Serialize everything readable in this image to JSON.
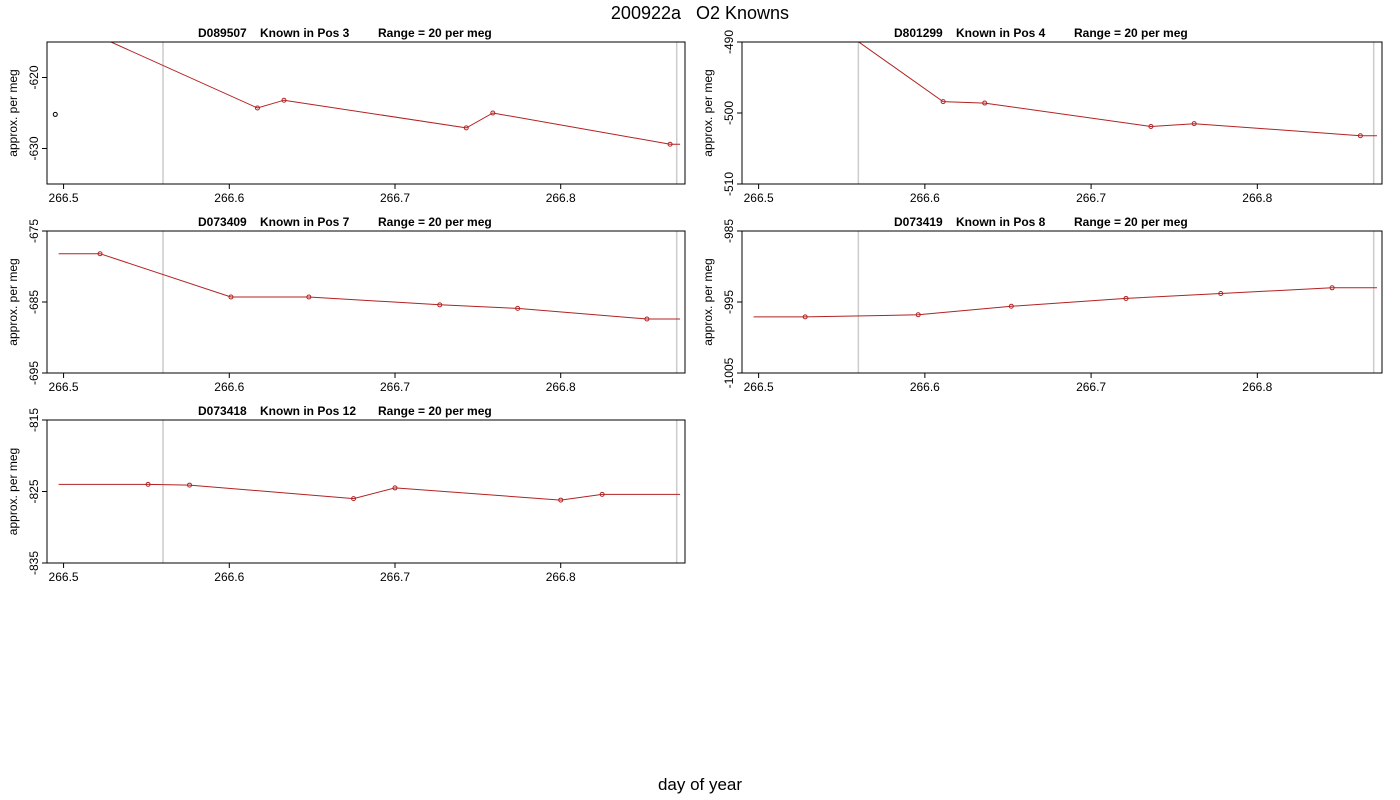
{
  "title": "200922a   O2 Knowns",
  "xlabel": "day of year",
  "colors": {
    "line": "#b22222",
    "frame": "#000000",
    "vline": "#cccccc",
    "outlier": "#000000"
  },
  "chart_data": [
    {
      "type": "line",
      "title_parts": [
        "D089507",
        "Known in Pos 3",
        "Range = 20 per meg"
      ],
      "ylabel": "approx. per meg",
      "xlim": [
        266.49,
        266.875
      ],
      "ylim": [
        -635,
        -615
      ],
      "xticks": [
        "266.5",
        "266.6",
        "266.7",
        "266.8"
      ],
      "yticks": [
        "-630",
        "-620"
      ],
      "vlines": [
        266.56,
        266.87
      ],
      "x": [
        266.5,
        266.617,
        266.633,
        266.743,
        266.759,
        266.866,
        266.872
      ],
      "y": [
        -612,
        -624.3,
        -623.2,
        -627.1,
        -625,
        -629.4,
        -629.4
      ],
      "markers": [
        1,
        2,
        3,
        4,
        5
      ],
      "outliers": [
        {
          "x": 266.495,
          "y": -625.2
        }
      ]
    },
    {
      "type": "line",
      "title_parts": [
        "D801299",
        "Known in Pos 4",
        "Range = 20 per meg"
      ],
      "ylabel": "approx. per meg",
      "xlim": [
        266.49,
        266.875
      ],
      "ylim": [
        -510,
        -490
      ],
      "xticks": [
        "266.5",
        "266.6",
        "266.7",
        "266.8"
      ],
      "yticks": [
        "-510",
        "-500",
        "-490"
      ],
      "vlines": [
        266.56,
        266.87
      ],
      "x": [
        266.53,
        266.611,
        266.636,
        266.736,
        266.762,
        266.862,
        266.872
      ],
      "y": [
        -485,
        -498.4,
        -498.6,
        -501.9,
        -501.5,
        -503.2,
        -503.2
      ],
      "markers": [
        1,
        2,
        3,
        4,
        5
      ],
      "outliers": []
    },
    {
      "type": "line",
      "title_parts": [
        "D073409",
        "Known in Pos 7",
        "Range = 20 per meg"
      ],
      "ylabel": "approx. per meg",
      "xlim": [
        266.49,
        266.875
      ],
      "ylim": [
        -695,
        -675
      ],
      "xticks": [
        "266.5",
        "266.6",
        "266.7",
        "266.8"
      ],
      "yticks": [
        "-695",
        "-685",
        "-675"
      ],
      "vlines": [
        266.56,
        266.87
      ],
      "x": [
        266.497,
        266.522,
        266.601,
        266.648,
        266.727,
        266.774,
        266.852,
        266.872
      ],
      "y": [
        -678.2,
        -678.2,
        -684.3,
        -684.3,
        -685.4,
        -685.9,
        -687.4,
        -687.4
      ],
      "markers": [
        1,
        2,
        3,
        4,
        5,
        6
      ],
      "outliers": []
    },
    {
      "type": "line",
      "title_parts": [
        "D073419",
        "Known in Pos 8",
        "Range = 20 per meg"
      ],
      "ylabel": "approx. per meg",
      "xlim": [
        266.49,
        266.875
      ],
      "ylim": [
        -1005,
        -985
      ],
      "xticks": [
        "266.5",
        "266.6",
        "266.7",
        "266.8"
      ],
      "yticks": [
        "-1005",
        "-995",
        "-985"
      ],
      "vlines": [
        266.56,
        266.87
      ],
      "x": [
        266.497,
        266.528,
        266.596,
        266.652,
        266.721,
        266.778,
        266.845,
        266.872
      ],
      "y": [
        -997.1,
        -997.1,
        -996.8,
        -995.6,
        -994.5,
        -993.8,
        -993,
        -993
      ],
      "markers": [
        1,
        2,
        3,
        4,
        5,
        6
      ],
      "outliers": []
    },
    {
      "type": "line",
      "title_parts": [
        "D073418",
        "Known in Pos 12",
        "Range = 20 per meg"
      ],
      "ylabel": "approx. per meg",
      "xlim": [
        266.49,
        266.875
      ],
      "ylim": [
        -835,
        -815
      ],
      "xticks": [
        "266.5",
        "266.6",
        "266.7",
        "266.8"
      ],
      "yticks": [
        "-835",
        "-825",
        "-815"
      ],
      "vlines": [
        266.56,
        266.87
      ],
      "x": [
        266.497,
        266.551,
        266.576,
        266.675,
        266.7,
        266.8,
        266.825,
        266.872
      ],
      "y": [
        -824,
        -824,
        -824.1,
        -826,
        -824.5,
        -826.2,
        -825.4,
        -825.4
      ],
      "markers": [
        1,
        2,
        3,
        4,
        5,
        6
      ],
      "outliers": []
    }
  ]
}
